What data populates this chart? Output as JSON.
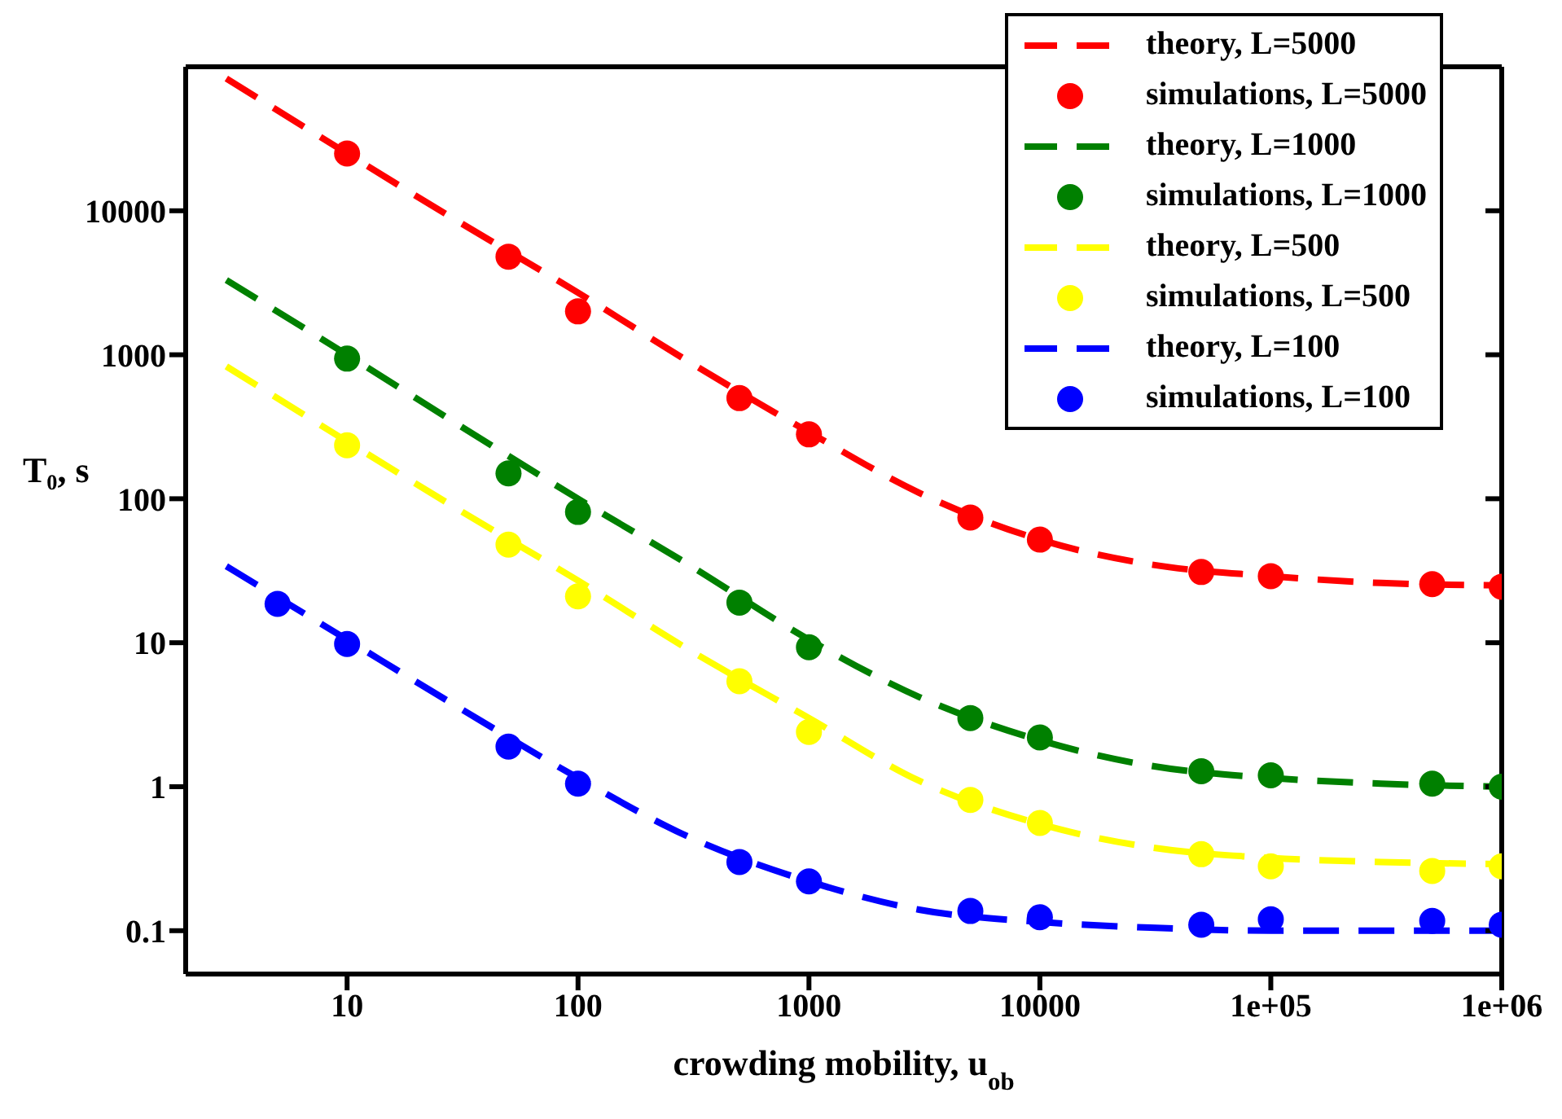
{
  "chart_data": {
    "type": "line",
    "xlabel": "crowding mobility, u$_{ob}$",
    "ylabel": "T₀, s",
    "log": "xy",
    "grid": false,
    "legend": "top right",
    "xlim": [
      2,
      1000000
    ],
    "xticks": [
      10,
      100,
      1000,
      10000,
      {
        "value": 100000,
        "label": "1e+05"
      },
      {
        "value": 1000000,
        "label": "1e+06"
      }
    ],
    "ylim": [
      0.05,
      100000
    ],
    "yticks": [
      0.1,
      1,
      10,
      100,
      1000,
      10000
    ],
    "series": [
      {
        "name": "theory, L=5000",
        "color": "#ff0000",
        "line_style": "dashed",
        "marker": "none",
        "x": [
          3,
          10,
          30,
          100,
          300,
          1000,
          3000,
          10000,
          30000,
          100000,
          300000,
          1000000
        ],
        "values": [
          83000,
          25000,
          8500,
          2700,
          900,
          290,
          110,
          52,
          35,
          29,
          26,
          25
        ]
      },
      {
        "name": "simulations, L=5000",
        "type": "scatter",
        "color": "#ff0000",
        "marker": "circle",
        "x": [
          10,
          50,
          100,
          500,
          1000,
          5000,
          10000,
          50000,
          100000,
          500000,
          1000000
        ],
        "values": [
          25000,
          4800,
          2000,
          500,
          280,
          74,
          52,
          31,
          29,
          25.5,
          24.5
        ]
      },
      {
        "name": "theory, L=1000",
        "color": "#008000",
        "line_style": "dashed",
        "marker": "none",
        "x": [
          3,
          10,
          30,
          100,
          300,
          1000,
          3000,
          10000,
          30000,
          100000,
          300000,
          1000000
        ],
        "values": [
          3300,
          1000,
          330,
          100,
          35,
          10.5,
          4.2,
          2.1,
          1.4,
          1.15,
          1.05,
          1.0
        ]
      },
      {
        "name": "simulations, L=1000",
        "type": "scatter",
        "color": "#008000",
        "marker": "circle",
        "x": [
          10,
          50,
          100,
          500,
          1000,
          5000,
          10000,
          50000,
          100000,
          500000,
          1000000
        ],
        "values": [
          940,
          150,
          81,
          19,
          9.3,
          3.0,
          2.2,
          1.28,
          1.2,
          1.05,
          1.0
        ]
      },
      {
        "name": "theory, L=500",
        "color": "#ffff00",
        "line_style": "dashed",
        "marker": "none",
        "x": [
          3,
          10,
          30,
          100,
          300,
          1000,
          3000,
          10000,
          30000,
          100000,
          300000,
          1000000
        ],
        "values": [
          830,
          250,
          85,
          27,
          9,
          3,
          1.1,
          0.55,
          0.38,
          0.32,
          0.3,
          0.29
        ]
      },
      {
        "name": "simulations, L=500",
        "type": "scatter",
        "color": "#ffff00",
        "marker": "circle",
        "x": [
          10,
          50,
          100,
          500,
          1000,
          5000,
          10000,
          50000,
          100000,
          500000,
          1000000
        ],
        "values": [
          235,
          48,
          21,
          5.4,
          2.4,
          0.81,
          0.56,
          0.34,
          0.28,
          0.26,
          0.28
        ]
      },
      {
        "name": "theory, L=100",
        "color": "#0000ff",
        "line_style": "dashed",
        "marker": "none",
        "x": [
          3,
          10,
          30,
          100,
          300,
          1000,
          3000,
          10000,
          30000,
          100000,
          300000,
          1000000
        ],
        "values": [
          34,
          10.5,
          3.6,
          1.15,
          0.45,
          0.22,
          0.14,
          0.115,
          0.105,
          0.1,
          0.1,
          0.1
        ]
      },
      {
        "name": "simulations, L=100",
        "type": "scatter",
        "color": "#0000ff",
        "marker": "circle",
        "x": [
          5,
          10,
          50,
          100,
          500,
          1000,
          5000,
          10000,
          50000,
          100000,
          500000,
          1000000
        ],
        "values": [
          18.6,
          9.8,
          1.9,
          1.05,
          0.3,
          0.22,
          0.137,
          0.124,
          0.11,
          0.12,
          0.117,
          0.11
        ]
      }
    ]
  }
}
